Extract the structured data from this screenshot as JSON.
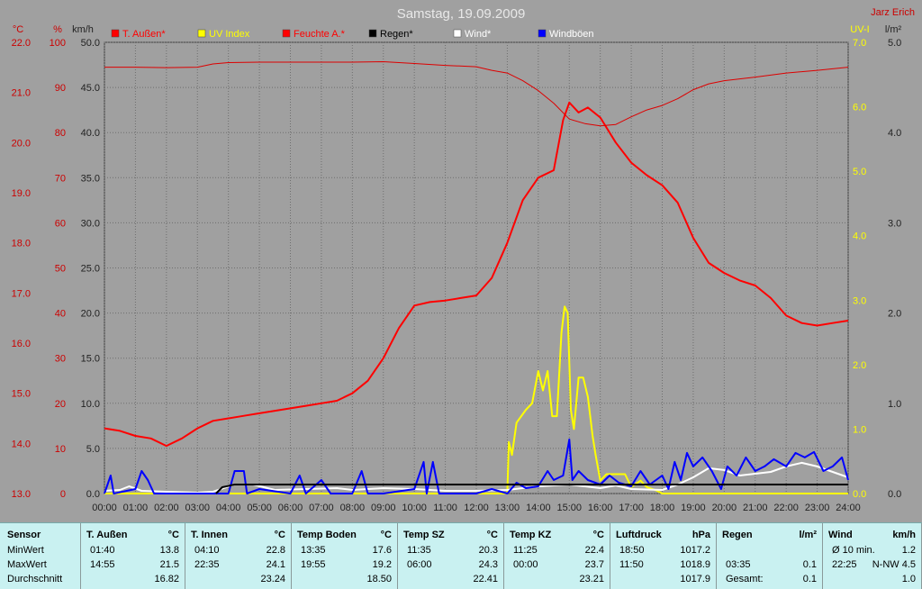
{
  "chart_data": {
    "type": "line",
    "title": "Samstag, 19.09.2009",
    "author": "Jarz Erich",
    "units": {
      "temp": "°C",
      "humidity": "%",
      "wind": "km/h",
      "uv": "UV-I",
      "rain": "l/m²"
    },
    "left_axes": {
      "temp": {
        "range": [
          13.0,
          22.0
        ],
        "ticks": [
          "13.0",
          "14.0",
          "15.0",
          "16.0",
          "17.0",
          "18.0",
          "19.0",
          "20.0",
          "21.0",
          "22.0"
        ]
      },
      "humidity": {
        "range": [
          0,
          100
        ],
        "ticks": [
          "0",
          "10",
          "20",
          "30",
          "40",
          "50",
          "60",
          "70",
          "80",
          "90",
          "100"
        ]
      },
      "wind": {
        "range": [
          0,
          50
        ],
        "ticks": [
          "0.0",
          "5.0",
          "10.0",
          "15.0",
          "20.0",
          "25.0",
          "30.0",
          "35.0",
          "40.0",
          "45.0",
          "50.0"
        ]
      }
    },
    "right_axes": {
      "uv": {
        "range": [
          0,
          7
        ],
        "ticks": [
          "0.0",
          "1.0",
          "2.0",
          "3.0",
          "4.0",
          "5.0",
          "6.0",
          "7.0"
        ]
      },
      "rain": {
        "range": [
          0,
          5
        ],
        "ticks": [
          "0.0",
          "1.0",
          "2.0",
          "3.0",
          "4.0",
          "5.0"
        ]
      }
    },
    "x_ticks": [
      "00:00",
      "01:00",
      "02:00",
      "03:00",
      "04:00",
      "05:00",
      "06:00",
      "07:00",
      "08:00",
      "09:00",
      "10:00",
      "11:00",
      "12:00",
      "13:00",
      "14:00",
      "15:00",
      "16:00",
      "17:00",
      "18:00",
      "19:00",
      "20:00",
      "21:00",
      "22:00",
      "23:00",
      "24:00"
    ],
    "legend_placement": "top",
    "legend": [
      {
        "label": "T. Außen*",
        "color": "#ff0000",
        "label_color": "#ff0000"
      },
      {
        "label": "UV Index",
        "color": "#ffff00",
        "label_color": "#ffff00"
      },
      {
        "label": "Feuchte A.*",
        "color": "#ff0000",
        "label_color": "#ff0000"
      },
      {
        "label": "Regen*",
        "color": "#000000",
        "label_color": "#000000"
      },
      {
        "label": "Wind*",
        "color": "#ffffff",
        "label_color": "#ffffff"
      },
      {
        "label": "Windböen",
        "color": "#0000ff",
        "label_color": "#ffffff"
      }
    ],
    "grid": true,
    "series": [
      {
        "name": "T. Außen*",
        "axis": "temp",
        "color": "#ff0000",
        "width": 2,
        "points": [
          [
            0,
            14.3
          ],
          [
            0.5,
            14.25
          ],
          [
            1,
            14.15
          ],
          [
            1.5,
            14.1
          ],
          [
            2,
            13.95
          ],
          [
            2.5,
            14.1
          ],
          [
            3,
            14.3
          ],
          [
            3.5,
            14.45
          ],
          [
            4,
            14.5
          ],
          [
            4.5,
            14.55
          ],
          [
            5,
            14.6
          ],
          [
            5.5,
            14.65
          ],
          [
            6,
            14.7
          ],
          [
            6.5,
            14.75
          ],
          [
            7,
            14.8
          ],
          [
            7.5,
            14.85
          ],
          [
            8,
            15.0
          ],
          [
            8.5,
            15.25
          ],
          [
            9,
            15.7
          ],
          [
            9.5,
            16.3
          ],
          [
            10,
            16.75
          ],
          [
            10.5,
            16.82
          ],
          [
            11,
            16.85
          ],
          [
            11.5,
            16.9
          ],
          [
            12,
            16.95
          ],
          [
            12.5,
            17.3
          ],
          [
            13,
            18.0
          ],
          [
            13.5,
            18.85
          ],
          [
            14,
            19.3
          ],
          [
            14.5,
            19.45
          ],
          [
            14.8,
            20.45
          ],
          [
            15,
            20.8
          ],
          [
            15.3,
            20.6
          ],
          [
            15.6,
            20.7
          ],
          [
            16,
            20.5
          ],
          [
            16.5,
            20.0
          ],
          [
            17,
            19.6
          ],
          [
            17.5,
            19.35
          ],
          [
            18,
            19.15
          ],
          [
            18.5,
            18.8
          ],
          [
            19,
            18.1
          ],
          [
            19.5,
            17.6
          ],
          [
            20,
            17.4
          ],
          [
            20.5,
            17.25
          ],
          [
            21,
            17.15
          ],
          [
            21.5,
            16.9
          ],
          [
            22,
            16.55
          ],
          [
            22.5,
            16.4
          ],
          [
            23,
            16.35
          ],
          [
            23.5,
            16.4
          ],
          [
            24,
            16.45
          ]
        ]
      },
      {
        "name": "Feuchte A.*",
        "axis": "humidity",
        "color": "#dd0000",
        "width": 1,
        "points": [
          [
            0,
            94.5
          ],
          [
            1,
            94.5
          ],
          [
            2,
            94.4
          ],
          [
            3,
            94.5
          ],
          [
            3.5,
            95.2
          ],
          [
            4,
            95.5
          ],
          [
            5,
            95.6
          ],
          [
            6,
            95.6
          ],
          [
            7,
            95.6
          ],
          [
            8,
            95.6
          ],
          [
            9,
            95.7
          ],
          [
            10,
            95.3
          ],
          [
            11,
            94.9
          ],
          [
            12,
            94.6
          ],
          [
            12.5,
            93.8
          ],
          [
            13,
            93.2
          ],
          [
            13.5,
            91.5
          ],
          [
            14,
            89.3
          ],
          [
            14.5,
            86.5
          ],
          [
            15,
            83.0
          ],
          [
            15.5,
            82.0
          ],
          [
            16,
            81.5
          ],
          [
            16.5,
            81.8
          ],
          [
            17,
            83.5
          ],
          [
            17.5,
            85.0
          ],
          [
            18,
            86.0
          ],
          [
            18.5,
            87.5
          ],
          [
            19,
            89.5
          ],
          [
            19.5,
            90.8
          ],
          [
            20,
            91.5
          ],
          [
            21,
            92.3
          ],
          [
            22,
            93.2
          ],
          [
            23,
            93.8
          ],
          [
            24,
            94.5
          ]
        ]
      },
      {
        "name": "UV Index",
        "axis": "uv",
        "color": "#ffff00",
        "width": 2,
        "points": [
          [
            0,
            0
          ],
          [
            13.0,
            0
          ],
          [
            13.05,
            0.8
          ],
          [
            13.15,
            0.6
          ],
          [
            13.3,
            1.1
          ],
          [
            13.6,
            1.3
          ],
          [
            13.8,
            1.4
          ],
          [
            14.0,
            1.9
          ],
          [
            14.15,
            1.6
          ],
          [
            14.3,
            1.9
          ],
          [
            14.45,
            1.2
          ],
          [
            14.6,
            1.2
          ],
          [
            14.75,
            2.5
          ],
          [
            14.85,
            2.9
          ],
          [
            14.95,
            2.8
          ],
          [
            15.05,
            1.3
          ],
          [
            15.15,
            1.0
          ],
          [
            15.3,
            1.8
          ],
          [
            15.45,
            1.8
          ],
          [
            15.6,
            1.5
          ],
          [
            15.75,
            0.9
          ],
          [
            15.85,
            0.6
          ],
          [
            16.0,
            0.2
          ],
          [
            16.2,
            0.3
          ],
          [
            16.5,
            0.3
          ],
          [
            16.8,
            0.3
          ],
          [
            17.0,
            0.1
          ],
          [
            17.3,
            0.2
          ],
          [
            17.5,
            0.1
          ],
          [
            17.8,
            0.05
          ],
          [
            18.0,
            0
          ],
          [
            24,
            0
          ]
        ]
      },
      {
        "name": "Wind*",
        "axis": "wind",
        "color": "#ffffff",
        "width": 2,
        "points": [
          [
            0,
            0.3
          ],
          [
            0.5,
            0.4
          ],
          [
            0.8,
            0.8
          ],
          [
            1.2,
            0.3
          ],
          [
            2,
            0.2
          ],
          [
            3,
            0.1
          ],
          [
            3.5,
            0.2
          ],
          [
            4.2,
            1.0
          ],
          [
            4.8,
            1.0
          ],
          [
            5.5,
            0.4
          ],
          [
            6.5,
            0.5
          ],
          [
            7.5,
            0.6
          ],
          [
            8,
            0.4
          ],
          [
            9,
            0.6
          ],
          [
            10,
            0.5
          ],
          [
            11,
            0.3
          ],
          [
            12,
            0.3
          ],
          [
            13,
            0.4
          ],
          [
            14,
            0.8
          ],
          [
            15,
            1.0
          ],
          [
            15.5,
            0.8
          ],
          [
            16,
            0.6
          ],
          [
            16.5,
            0.9
          ],
          [
            17,
            0.5
          ],
          [
            18,
            0.4
          ],
          [
            18.5,
            1.0
          ],
          [
            19,
            1.8
          ],
          [
            19.5,
            2.8
          ],
          [
            20,
            2.6
          ],
          [
            20.5,
            2.0
          ],
          [
            21,
            2.2
          ],
          [
            21.5,
            2.4
          ],
          [
            22,
            3.0
          ],
          [
            22.5,
            3.4
          ],
          [
            23,
            3.0
          ],
          [
            23.5,
            2.4
          ],
          [
            24,
            1.8
          ]
        ]
      },
      {
        "name": "Windböen",
        "axis": "wind",
        "color": "#0000ff",
        "width": 2,
        "points": [
          [
            0,
            0
          ],
          [
            0.2,
            2.0
          ],
          [
            0.3,
            0
          ],
          [
            1,
            0.5
          ],
          [
            1.2,
            2.5
          ],
          [
            1.4,
            1.5
          ],
          [
            1.6,
            0
          ],
          [
            2,
            0
          ],
          [
            3,
            0
          ],
          [
            4,
            0
          ],
          [
            4.2,
            2.5
          ],
          [
            4.5,
            2.5
          ],
          [
            4.6,
            0
          ],
          [
            5,
            0.5
          ],
          [
            6,
            0
          ],
          [
            6.3,
            2.0
          ],
          [
            6.5,
            0
          ],
          [
            7,
            1.5
          ],
          [
            7.3,
            0
          ],
          [
            8,
            0
          ],
          [
            8.3,
            2.5
          ],
          [
            8.5,
            0
          ],
          [
            9,
            0
          ],
          [
            10,
            0.5
          ],
          [
            10.3,
            3.5
          ],
          [
            10.4,
            0
          ],
          [
            10.6,
            3.5
          ],
          [
            10.8,
            0
          ],
          [
            11,
            0
          ],
          [
            12,
            0
          ],
          [
            12.5,
            0.5
          ],
          [
            13,
            0
          ],
          [
            13.3,
            1.2
          ],
          [
            13.6,
            0.6
          ],
          [
            14,
            0.8
          ],
          [
            14.3,
            2.5
          ],
          [
            14.5,
            1.5
          ],
          [
            14.8,
            2.0
          ],
          [
            15.0,
            6.0
          ],
          [
            15.1,
            1.5
          ],
          [
            15.3,
            2.5
          ],
          [
            15.6,
            1.5
          ],
          [
            16,
            1.0
          ],
          [
            16.3,
            2.0
          ],
          [
            16.6,
            1.2
          ],
          [
            17,
            0.8
          ],
          [
            17.3,
            2.5
          ],
          [
            17.6,
            1.0
          ],
          [
            18,
            2.0
          ],
          [
            18.2,
            0.5
          ],
          [
            18.4,
            3.5
          ],
          [
            18.6,
            1.5
          ],
          [
            18.8,
            4.5
          ],
          [
            19,
            3.0
          ],
          [
            19.3,
            4.0
          ],
          [
            19.6,
            2.5
          ],
          [
            19.9,
            0.5
          ],
          [
            20.1,
            3.0
          ],
          [
            20.4,
            2.0
          ],
          [
            20.7,
            4.0
          ],
          [
            21,
            2.5
          ],
          [
            21.3,
            3.0
          ],
          [
            21.6,
            3.8
          ],
          [
            22,
            3.0
          ],
          [
            22.3,
            4.5
          ],
          [
            22.6,
            4.0
          ],
          [
            22.9,
            4.6
          ],
          [
            23.2,
            2.5
          ],
          [
            23.5,
            3.0
          ],
          [
            23.8,
            4.0
          ],
          [
            24,
            1.5
          ]
        ]
      },
      {
        "name": "Regen*",
        "axis": "rain",
        "color": "#000000",
        "width": 2,
        "points": [
          [
            3.6,
            0.0
          ],
          [
            3.8,
            0.07
          ],
          [
            4.2,
            0.1
          ],
          [
            24,
            0.1
          ]
        ]
      }
    ]
  },
  "stats": {
    "sensor_header": "Sensor",
    "row_labels": [
      "MinWert",
      "MaxWert",
      "Durchschnitt"
    ],
    "columns": [
      {
        "name": "T. Außen",
        "unit": "°C",
        "rows": [
          [
            "01:40",
            "13.8"
          ],
          [
            "14:55",
            "21.5"
          ],
          [
            "",
            "16.82"
          ]
        ]
      },
      {
        "name": "T. Innen",
        "unit": "°C",
        "rows": [
          [
            "04:10",
            "22.8"
          ],
          [
            "22:35",
            "24.1"
          ],
          [
            "",
            "23.24"
          ]
        ]
      },
      {
        "name": "Temp Boden",
        "unit": "°C",
        "rows": [
          [
            "13:35",
            "17.6"
          ],
          [
            "19:55",
            "19.2"
          ],
          [
            "",
            "18.50"
          ]
        ]
      },
      {
        "name": "Temp SZ",
        "unit": "°C",
        "rows": [
          [
            "11:35",
            "20.3"
          ],
          [
            "06:00",
            "24.3"
          ],
          [
            "",
            "22.41"
          ]
        ]
      },
      {
        "name": "Temp KZ",
        "unit": "°C",
        "rows": [
          [
            "11:25",
            "22.4"
          ],
          [
            "00:00",
            "23.7"
          ],
          [
            "",
            "23.21"
          ]
        ]
      },
      {
        "name": "Luftdruck",
        "unit": "hPa",
        "rows": [
          [
            "18:50",
            "1017.2"
          ],
          [
            "11:50",
            "1018.9"
          ],
          [
            "",
            "1017.9"
          ]
        ]
      },
      {
        "name": "Regen",
        "unit": "l/m²",
        "rows": [
          [
            "",
            ""
          ],
          [
            "03:35",
            "0.1"
          ],
          [
            "Gesamt:",
            "0.1"
          ]
        ]
      },
      {
        "name": "Wind",
        "unit": "km/h",
        "rows": [
          [
            "Ø 10 min.",
            "1.2"
          ],
          [
            "22:25",
            "N-NW 4.5"
          ],
          [
            "",
            "1.0"
          ]
        ]
      }
    ]
  }
}
